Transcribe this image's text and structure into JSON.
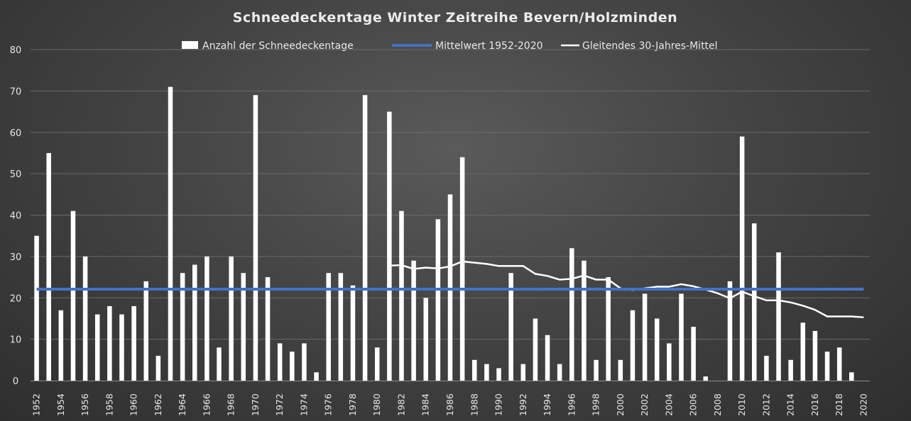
{
  "chart_data": {
    "type": "bar",
    "title": "Schneedeckentage  Winter Zeitreihe Bevern/Holzminden",
    "xlabel": "",
    "ylabel": "",
    "ylim": [
      0,
      80
    ],
    "yticks": [
      "0",
      "10",
      "20",
      "30",
      "40",
      "50",
      "60",
      "70",
      "80"
    ],
    "grid": true,
    "legend_position": "top",
    "x": [
      1952,
      1953,
      1954,
      1955,
      1956,
      1957,
      1958,
      1959,
      1960,
      1961,
      1962,
      1963,
      1964,
      1965,
      1966,
      1967,
      1968,
      1969,
      1970,
      1971,
      1972,
      1973,
      1974,
      1975,
      1976,
      1977,
      1978,
      1979,
      1980,
      1981,
      1982,
      1983,
      1984,
      1985,
      1986,
      1987,
      1988,
      1989,
      1990,
      1991,
      1992,
      1993,
      1994,
      1995,
      1996,
      1997,
      1998,
      1999,
      2000,
      2001,
      2002,
      2003,
      2004,
      2005,
      2006,
      2007,
      2008,
      2009,
      2010,
      2011,
      2012,
      2013,
      2014,
      2015,
      2016,
      2017,
      2018,
      2019,
      2020
    ],
    "xtick_labels": [
      "1952",
      "1954",
      "1956",
      "1958",
      "1960",
      "1962",
      "1964",
      "1966",
      "1968",
      "1970",
      "1972",
      "1974",
      "1976",
      "1978",
      "1980",
      "1982",
      "1984",
      "1986",
      "1988",
      "1990",
      "1992",
      "1994",
      "1996",
      "1998",
      "2000",
      "2002",
      "2004",
      "2006",
      "2008",
      "2010",
      "2012",
      "2014",
      "2016",
      "2018",
      "2020"
    ],
    "series": [
      {
        "name": "Anzahl der Schneedeckentage",
        "kind": "bar",
        "color": "#ffffff",
        "values": [
          35,
          55,
          17,
          41,
          30,
          16,
          18,
          16,
          18,
          24,
          6,
          71,
          26,
          28,
          30,
          8,
          30,
          26,
          69,
          25,
          9,
          7,
          9,
          2,
          26,
          26,
          23,
          69,
          8,
          65,
          41,
          29,
          20,
          39,
          45,
          54,
          5,
          4,
          3,
          26,
          4,
          15,
          11,
          4,
          32,
          29,
          5,
          25,
          5,
          17,
          21,
          15,
          9,
          21,
          13,
          1,
          0,
          24,
          59,
          38,
          6,
          31,
          5,
          14,
          12,
          7,
          8,
          2,
          0
        ]
      },
      {
        "name": "Mittelwert 1952-2020",
        "kind": "line",
        "color": "#4472c4",
        "values": [
          22.1,
          22.1,
          22.1,
          22.1,
          22.1,
          22.1,
          22.1,
          22.1,
          22.1,
          22.1,
          22.1,
          22.1,
          22.1,
          22.1,
          22.1,
          22.1,
          22.1,
          22.1,
          22.1,
          22.1,
          22.1,
          22.1,
          22.1,
          22.1,
          22.1,
          22.1,
          22.1,
          22.1,
          22.1,
          22.1,
          22.1,
          22.1,
          22.1,
          22.1,
          22.1,
          22.1,
          22.1,
          22.1,
          22.1,
          22.1,
          22.1,
          22.1,
          22.1,
          22.1,
          22.1,
          22.1,
          22.1,
          22.1,
          22.1,
          22.1,
          22.1,
          22.1,
          22.1,
          22.1,
          22.1,
          22.1,
          22.1,
          22.1,
          22.1,
          22.1,
          22.1,
          22.1,
          22.1,
          22.1,
          22.1,
          22.1,
          22.1,
          22.1,
          22.1
        ]
      },
      {
        "name": "Gleitendes 30-Jahres-Mittel",
        "kind": "line",
        "color": "#ffffff",
        "values": [
          null,
          null,
          null,
          null,
          null,
          null,
          null,
          null,
          null,
          null,
          null,
          null,
          null,
          null,
          null,
          null,
          null,
          null,
          null,
          null,
          null,
          null,
          null,
          null,
          null,
          null,
          null,
          null,
          null,
          27.8,
          27.9,
          27.0,
          27.3,
          27.1,
          27.6,
          28.8,
          28.5,
          28.2,
          27.7,
          27.7,
          27.7,
          25.8,
          25.3,
          24.4,
          24.6,
          25.4,
          24.4,
          24.4,
          22.3,
          21.9,
          22.3,
          22.7,
          22.7,
          23.3,
          22.8,
          22.0,
          21.1,
          19.9,
          21.5,
          20.4,
          19.4,
          19.4,
          18.9,
          18.1,
          17.1,
          15.5,
          15.5,
          15.5,
          15.3
        ]
      }
    ]
  }
}
